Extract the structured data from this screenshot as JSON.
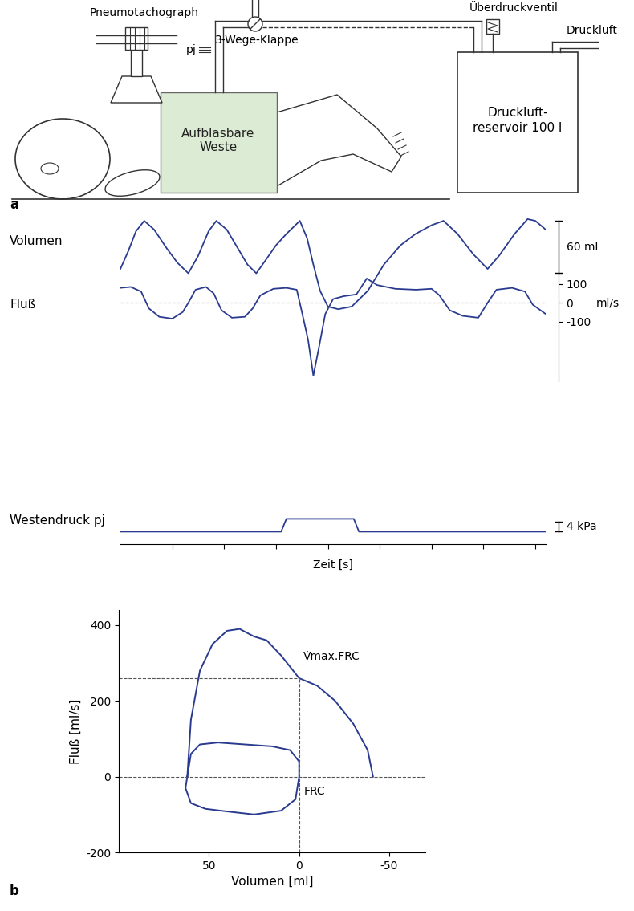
{
  "diagram": {
    "label": "a",
    "texts": {
      "pneumotachograph": "Pneumotachograph",
      "pressure": "pj",
      "valve": "3-Wege-Klappe",
      "relief_valve": "Überdruckventil",
      "supply": "Druckluft",
      "vest": "Aufblasbare\nWeste",
      "reservoir": "Druckluft-\nreservoir 100 l"
    }
  },
  "chart_data": [
    {
      "type": "line",
      "xlabel": "Zeit [s]",
      "xlim": [
        0,
        8.2
      ],
      "xticks": [
        1,
        2,
        3,
        4,
        5,
        6,
        7,
        8
      ],
      "tick_labels": "y",
      "series": [
        {
          "name": "Volumen",
          "color": "#2a3b8f",
          "x": [
            0,
            0.15,
            0.3,
            0.46,
            0.65,
            0.9,
            1.1,
            1.31,
            1.5,
            1.7,
            1.85,
            2.05,
            2.3,
            2.45,
            2.62,
            2.8,
            3.0,
            3.2,
            3.46,
            3.6,
            3.72,
            3.85,
            4.0,
            4.2,
            4.46,
            4.77,
            5.08,
            5.4,
            5.69,
            6.0,
            6.23,
            6.5,
            6.8,
            7.08,
            7.3,
            7.6,
            7.85,
            8.0,
            8.2
          ],
          "values": [
            5,
            25,
            48,
            60,
            50,
            28,
            12,
            0,
            20,
            48,
            60,
            50,
            25,
            10,
            0,
            15,
            32,
            45,
            60,
            40,
            10,
            -20,
            -38,
            -41,
            -38,
            -20,
            10,
            32,
            45,
            55,
            60,
            45,
            22,
            5,
            20,
            45,
            62,
            60,
            50
          ],
          "ylim": [
            -50,
            72
          ],
          "scale_bar": {
            "value": 60,
            "label": "60 ml"
          }
        },
        {
          "name": "Fluß",
          "color": "#2a3b8f",
          "x": [
            0,
            0.2,
            0.4,
            0.55,
            0.75,
            1.0,
            1.2,
            1.31,
            1.45,
            1.65,
            1.8,
            1.95,
            2.15,
            2.4,
            2.55,
            2.7,
            2.95,
            3.2,
            3.4,
            3.5,
            3.62,
            3.72,
            3.82,
            3.95,
            4.1,
            4.3,
            4.55,
            4.75,
            4.95,
            5.3,
            5.7,
            6.0,
            6.15,
            6.35,
            6.6,
            6.9,
            7.08,
            7.25,
            7.55,
            7.8,
            7.95,
            8.2
          ],
          "values": [
            80,
            85,
            60,
            -30,
            -75,
            -85,
            -50,
            0,
            70,
            85,
            50,
            -40,
            -80,
            -75,
            -30,
            40,
            75,
            80,
            70,
            -50,
            -200,
            -390,
            -250,
            -60,
            20,
            35,
            45,
            130,
            95,
            75,
            70,
            75,
            40,
            -40,
            -70,
            -80,
            0,
            70,
            80,
            60,
            -10,
            -60
          ],
          "ylim": [
            -420,
            160
          ],
          "yticks": [
            100,
            0,
            -100
          ],
          "ylabel": "ml/s"
        },
        {
          "name": "Westendruck pj",
          "color": "#2a3b8f",
          "x": [
            0,
            3.1,
            3.2,
            4.5,
            4.6,
            8.2
          ],
          "values": [
            0,
            0,
            5,
            5,
            0,
            0
          ],
          "ylim": [
            -3,
            7
          ],
          "scale_bar": {
            "value": 4,
            "label": "4 kPa"
          }
        }
      ]
    },
    {
      "type": "line",
      "panel_label": "b",
      "xlabel": "Volumen [ml]",
      "ylabel": "Fluß [ml/s]",
      "xlim": [
        100,
        -70
      ],
      "xticks": [
        50,
        0,
        -50
      ],
      "ylim": [
        -200,
        440
      ],
      "yticks": [
        -200,
        0,
        200,
        400
      ],
      "series": [
        {
          "color": "#2a3b8f",
          "x": [
            62,
            60,
            55,
            48,
            40,
            33,
            25,
            18,
            10,
            0,
            -10,
            -20,
            -30,
            -38,
            -41
          ],
          "values": [
            0,
            150,
            280,
            350,
            385,
            390,
            370,
            360,
            320,
            260,
            240,
            200,
            140,
            70,
            0
          ]
        },
        {
          "color": "#2a3b8f",
          "x": [
            62,
            60,
            55,
            45,
            30,
            15,
            5,
            0,
            0,
            2,
            10,
            25,
            40,
            52,
            60,
            63,
            62
          ],
          "values": [
            0,
            60,
            85,
            90,
            85,
            80,
            70,
            40,
            0,
            -60,
            -90,
            -100,
            -92,
            -85,
            -70,
            -30,
            0
          ]
        }
      ],
      "annotations": [
        {
          "label": "V̇max.FRC",
          "x": 0,
          "y": 260
        },
        {
          "label": "FRC",
          "x": 0,
          "y": 0
        }
      ]
    }
  ]
}
